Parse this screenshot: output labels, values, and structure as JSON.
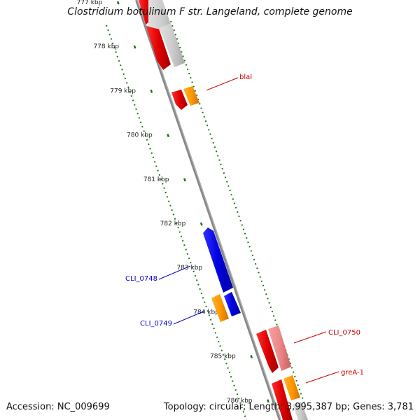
{
  "title": "Clostridium botulinum F str. Langeland, complete genome",
  "accession": "Accession: NC_009699",
  "summary": "Topology: circular; Length: 3,995,387 bp; Genes: 3,781",
  "ticks": [
    {
      "label": "777 kbp",
      "kb": 777
    },
    {
      "label": "778 kbp",
      "kb": 778
    },
    {
      "label": "779 kbp",
      "kb": 779
    },
    {
      "label": "780 kbp",
      "kb": 780
    },
    {
      "label": "781 kbp",
      "kb": 781
    },
    {
      "label": "782 kbp",
      "kb": 782
    },
    {
      "label": "783 kbp",
      "kb": 783
    },
    {
      "label": "784 kbp",
      "kb": 784
    },
    {
      "label": "785 kbp",
      "kb": 785
    },
    {
      "label": "786 kbp",
      "kb": 786
    }
  ],
  "gene_labels": [
    {
      "text": "blaI",
      "color": "#cc0000"
    },
    {
      "text": "CLI_0748",
      "color": "#0000cc"
    },
    {
      "text": "CLI_0749",
      "color": "#0000cc"
    },
    {
      "text": "CLI_0750",
      "color": "#cc0000"
    },
    {
      "text": "greA-1",
      "color": "#cc0000"
    }
  ],
  "colors": {
    "forward_cds": "#ee0000",
    "forward_rna": "#ff9900",
    "reverse_cds": "#0000ee",
    "reverse_rna": "#ff9900",
    "light": "#cccccc",
    "pink": "#ee8888",
    "backbone": "#888888",
    "tick": "#117711"
  }
}
